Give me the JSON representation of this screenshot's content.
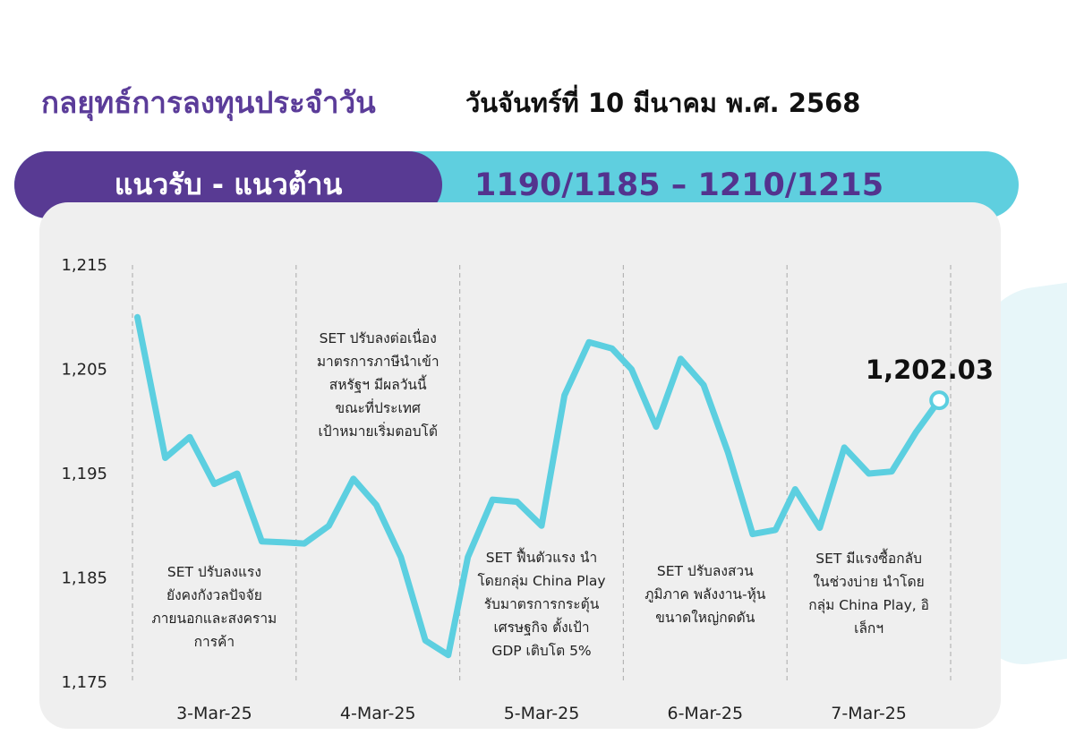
{
  "header": {
    "title": "กลยุทธ์การลงทุนประจำวัน",
    "date": "วันจันทร์ที่ 10 มีนาคม พ.ศ. 2568"
  },
  "levels": {
    "label": "แนวรับ - แนวต้าน",
    "value": "1190/1185 – 1210/1215"
  },
  "colors": {
    "purple": "#583a93",
    "cyan": "#5fcfdf",
    "line": "#5ccfe0"
  },
  "chart_data": {
    "type": "line",
    "ylim": [
      1175,
      1215
    ],
    "yticks": [
      "1,215",
      "1,205",
      "1,195",
      "1,185",
      "1,175"
    ],
    "ytick_values": [
      1215,
      1205,
      1195,
      1185,
      1175
    ],
    "xlim": [
      0,
      5
    ],
    "categories": [
      "3-Mar-25",
      "4-Mar-25",
      "5-Mar-25",
      "6-Mar-25",
      "7-Mar-25"
    ],
    "grid": "vertical-dashed",
    "last_value_label": "1,202.03",
    "series": [
      {
        "x": [
          0.03,
          0.2,
          0.35,
          0.5,
          0.64,
          0.79,
          0.93,
          1.05,
          1.2,
          1.35,
          1.49,
          1.64,
          1.79,
          1.93,
          2.05,
          2.2,
          2.35,
          2.5,
          2.64,
          2.79,
          2.93,
          3.05,
          3.2,
          3.35,
          3.49,
          3.64,
          3.79,
          3.93,
          4.05,
          4.2,
          4.35,
          4.5,
          4.64,
          4.79,
          4.93
        ],
        "y": [
          1210.0,
          1196.5,
          1198.5,
          1194.0,
          1195.0,
          1188.5,
          1188.4,
          1188.3,
          1190.0,
          1194.5,
          1192.0,
          1187.0,
          1179.0,
          1177.6,
          1187.0,
          1192.5,
          1192.3,
          1190.0,
          1202.5,
          1207.6,
          1207.0,
          1205.0,
          1199.5,
          1206.0,
          1203.5,
          1197.0,
          1189.2,
          1189.6,
          1193.5,
          1189.8,
          1197.5,
          1195.0,
          1195.2,
          1199.0,
          1202.03
        ]
      }
    ],
    "annotations": [
      {
        "lines": [
          "SET ปรับลงแรง",
          "ยังคงกังวลปัจจัย",
          "ภายนอกและสงคราม",
          "การค้า"
        ]
      },
      {
        "lines": [
          "SET ปรับลงต่อเนื่อง",
          "มาตรการภาษีนำเข้า",
          "สหรัฐฯ มีผลวันนี้",
          "ขณะที่ประเทศ",
          "เป้าหมายเริ่มตอบโต้"
        ]
      },
      {
        "lines": [
          "SET ฟื้นตัวแรง นำ",
          "โดยกลุ่ม China Play",
          "รับมาตรการกระตุ้น",
          "เศรษฐกิจ ตั้งเป้า",
          "GDP เติบโต 5%"
        ]
      },
      {
        "lines": [
          "SET ปรับลงสวน",
          "ภูมิภาค พลังงาน-หุ้น",
          "ขนาดใหญ่กดดัน"
        ]
      },
      {
        "lines": [
          "SET มีแรงซื้อกลับ",
          "ในช่วงบ่าย นำโดย",
          "กลุ่ม China Play, อิ",
          "เล็กฯ"
        ]
      }
    ]
  }
}
